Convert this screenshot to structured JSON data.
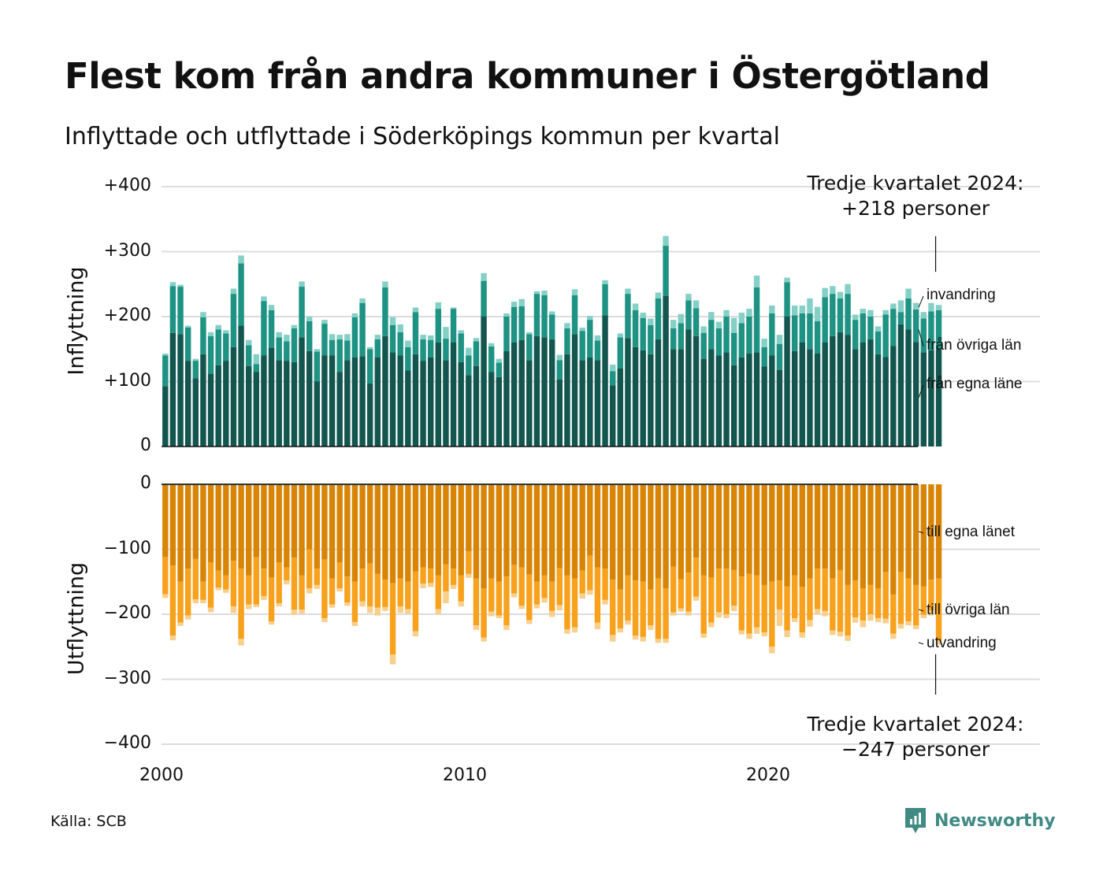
{
  "title": "Flest kom från andra kommuner i Östergötland",
  "subtitle": "Inflyttade och utflyttade i Söderköpings kommun per kvartal",
  "source": "Källa: SCB",
  "logo_text": "Newsworthy",
  "chart_data": {
    "type": "bar",
    "stacked": true,
    "xlabel": "",
    "x_start": "2000 Q1",
    "x_end": "2024 Q3",
    "x_ticks": [
      "2000",
      "2010",
      "2020"
    ],
    "grid": true,
    "colors": {
      "fran_egna": "#13564f",
      "fran_ovriga": "#1e9283",
      "invandring": "#85d0c6",
      "till_egna": "#d88506",
      "till_ovriga": "#f7a11c",
      "utvandring": "#f8cf8c"
    },
    "panels": [
      {
        "name": "inflyttning",
        "ylabel": "Inflyttning",
        "ylim": [
          0,
          400
        ],
        "y_ticks": [
          "0",
          "+100",
          "+200",
          "+300",
          "+400"
        ],
        "annotation_line1": "Tredje kvartalet 2024:",
        "annotation_line2": "+218 personer",
        "series": [
          {
            "name": "från egna läne",
            "values": [
              93,
              175,
              173,
              132,
              105,
              142,
              112,
              125,
              132,
              153,
              186,
              124,
              115,
              140,
              152,
              133,
              132,
              130,
              168,
              147,
              100,
              140,
              140,
              115,
              133,
              137,
              139,
              97,
              137,
              170,
              145,
              140,
              117,
              142,
              132,
              137,
              160,
              133,
              160,
              130,
              110,
              124,
              200,
              115,
              107,
              147,
              160,
              164,
              133,
              170,
              168,
              165,
              103,
              142,
              173,
              133,
              137,
              133,
              202,
              94,
              120,
              167,
              153,
              148,
              142,
              165,
              232,
              150,
              150,
              180,
              170,
              135,
              150,
              140,
              145,
              125,
              137,
              143,
              145,
              123,
              140,
              118,
              200,
              147,
              160,
              150,
              143,
              160,
              170,
              176,
              172,
              150,
              160,
              165,
              142,
              138,
              155,
              188,
              180,
              161,
              145,
              148,
              150
            ]
          },
          {
            "name": "från övriga län",
            "values": [
              47,
              72,
              73,
              51,
              27,
              57,
              58,
              55,
              42,
              82,
              96,
              32,
              12,
              84,
              58,
              35,
              30,
              52,
              78,
              46,
              46,
              49,
              24,
              50,
              30,
              62,
              82,
              53,
              28,
              75,
              42,
              36,
              36,
              65,
              33,
              27,
              52,
              33,
              52,
              44,
              30,
              38,
              55,
              39,
              22,
              53,
              55,
              52,
              40,
              65,
              65,
              38,
              30,
              40,
              60,
              45,
              58,
              30,
              48,
              22,
              48,
              68,
              57,
              50,
              45,
              63,
              77,
              32,
              40,
              45,
              43,
              40,
              45,
              42,
              55,
              50,
              53,
              57,
              100,
              30,
              65,
              40,
              53,
              55,
              45,
              55,
              50,
              70,
              65,
              52,
              63,
              45,
              45,
              35,
              35,
              65,
              57,
              19,
              48,
              50,
              52,
              60,
              60
            ]
          },
          {
            "name": "invandring",
            "values": [
              3,
              6,
              3,
              3,
              3,
              8,
              6,
              7,
              5,
              8,
              12,
              8,
              15,
              7,
              8,
              8,
              10,
              5,
              8,
              7,
              4,
              6,
              9,
              7,
              10,
              6,
              7,
              3,
              7,
              9,
              12,
              12,
              10,
              7,
              7,
              7,
              10,
              18,
              2,
              5,
              12,
              5,
              12,
              5,
              6,
              5,
              8,
              11,
              3,
              4,
              7,
              5,
              8,
              8,
              9,
              5,
              6,
              8,
              6,
              10,
              6,
              8,
              10,
              8,
              10,
              9,
              15,
              13,
              14,
              10,
              12,
              10,
              12,
              10,
              10,
              23,
              16,
              12,
              18,
              13,
              12,
              14,
              7,
              15,
              12,
              23,
              22,
              14,
              12,
              10,
              15,
              8,
              7,
              10,
              8,
              7,
              8,
              18,
              15,
              10,
              10,
              13,
              8
            ]
          }
        ]
      },
      {
        "name": "utflyttning",
        "ylabel": "Utflyttning",
        "ylim": [
          -400,
          0
        ],
        "y_ticks": [
          "0",
          "−100",
          "−200",
          "−300",
          "−400"
        ],
        "annotation_line1": "Tredje kvartalet 2024:",
        "annotation_line2": "−247 personer",
        "series": [
          {
            "name": "till egna länet",
            "values": [
              -112,
              -125,
              -150,
              -130,
              -115,
              -150,
              -120,
              -133,
              -140,
              -118,
              -130,
              -140,
              -112,
              -130,
              -143,
              -120,
              -128,
              -113,
              -140,
              -100,
              -130,
              -116,
              -145,
              -120,
              -142,
              -150,
              -130,
              -122,
              -138,
              -147,
              -152,
              -145,
              -150,
              -134,
              -128,
              -130,
              -140,
              -123,
              -130,
              -140,
              -103,
              -145,
              -160,
              -145,
              -150,
              -142,
              -124,
              -128,
              -139,
              -150,
              -140,
              -150,
              -129,
              -140,
              -145,
              -133,
              -110,
              -128,
              -130,
              -147,
              -162,
              -140,
              -148,
              -150,
              -162,
              -145,
              -160,
              -127,
              -146,
              -136,
              -113,
              -140,
              -143,
              -130,
              -130,
              -132,
              -142,
              -138,
              -140,
              -155,
              -150,
              -148,
              -157,
              -140,
              -158,
              -145,
              -130,
              -130,
              -145,
              -132,
              -155,
              -148,
              -160,
              -155,
              -160,
              -135,
              -170,
              -135,
              -145,
              -155,
              -157,
              -147,
              -145
            ]
          },
          {
            "name": "till övriga län",
            "values": [
              -57,
              -108,
              -63,
              -72,
              -62,
              -28,
              -70,
              -26,
              -22,
              -70,
              -108,
              -45,
              -73,
              -42,
              -68,
              -63,
              -20,
              -80,
              -53,
              -60,
              -25,
              -90,
              -40,
              -40,
              -40,
              -62,
              -50,
              -66,
              -52,
              -42,
              -110,
              -43,
              -42,
              -92,
              -25,
              -22,
              -52,
              -42,
              -25,
              -40,
              -35,
              -72,
              -76,
              -51,
              -52,
              -75,
              -44,
              -59,
              -70,
              -35,
              -35,
              -45,
              -57,
              -83,
              -75,
              -35,
              -53,
              -85,
              -48,
              -85,
              -60,
              -70,
              -85,
              -85,
              -55,
              -93,
              -78,
              -70,
              -45,
              -60,
              -60,
              -90,
              -70,
              -67,
              -70,
              -55,
              -83,
              -92,
              -80,
              -73,
              -100,
              -45,
              -68,
              -66,
              -70,
              -64,
              -62,
              -65,
              -80,
              -95,
              -78,
              -57,
              -50,
              -45,
              -46,
              -72,
              -60,
              -80,
              -66,
              -62,
              -44,
              -47,
              -95
            ]
          },
          {
            "name": "utvandring",
            "values": [
              -6,
              -7,
              -5,
              -6,
              -6,
              -5,
              -7,
              -4,
              -5,
              -10,
              -10,
              -7,
              -4,
              -6,
              -5,
              -5,
              -6,
              -8,
              -6,
              -8,
              -6,
              -6,
              -5,
              -5,
              -5,
              -6,
              -8,
              -10,
              -12,
              -6,
              -15,
              -10,
              -7,
              -8,
              -7,
              -6,
              -8,
              -18,
              -6,
              -8,
              -6,
              -7,
              -6,
              -7,
              -4,
              -7,
              -6,
              -5,
              -6,
              -6,
              -7,
              -9,
              -8,
              -7,
              -8,
              -8,
              -7,
              -10,
              -7,
              -10,
              -6,
              -6,
              -6,
              -7,
              -7,
              -6,
              -6,
              -5,
              -5,
              -6,
              -6,
              -6,
              -7,
              -8,
              -6,
              -8,
              -6,
              -8,
              -10,
              -6,
              -10,
              -25,
              -10,
              -6,
              -8,
              -10,
              -8,
              -8,
              -7,
              -7,
              -8,
              -8,
              -10,
              -10,
              -6,
              -7,
              -8,
              -7,
              -6,
              -6,
              -5,
              -8,
              -7
            ]
          }
        ]
      }
    ]
  }
}
